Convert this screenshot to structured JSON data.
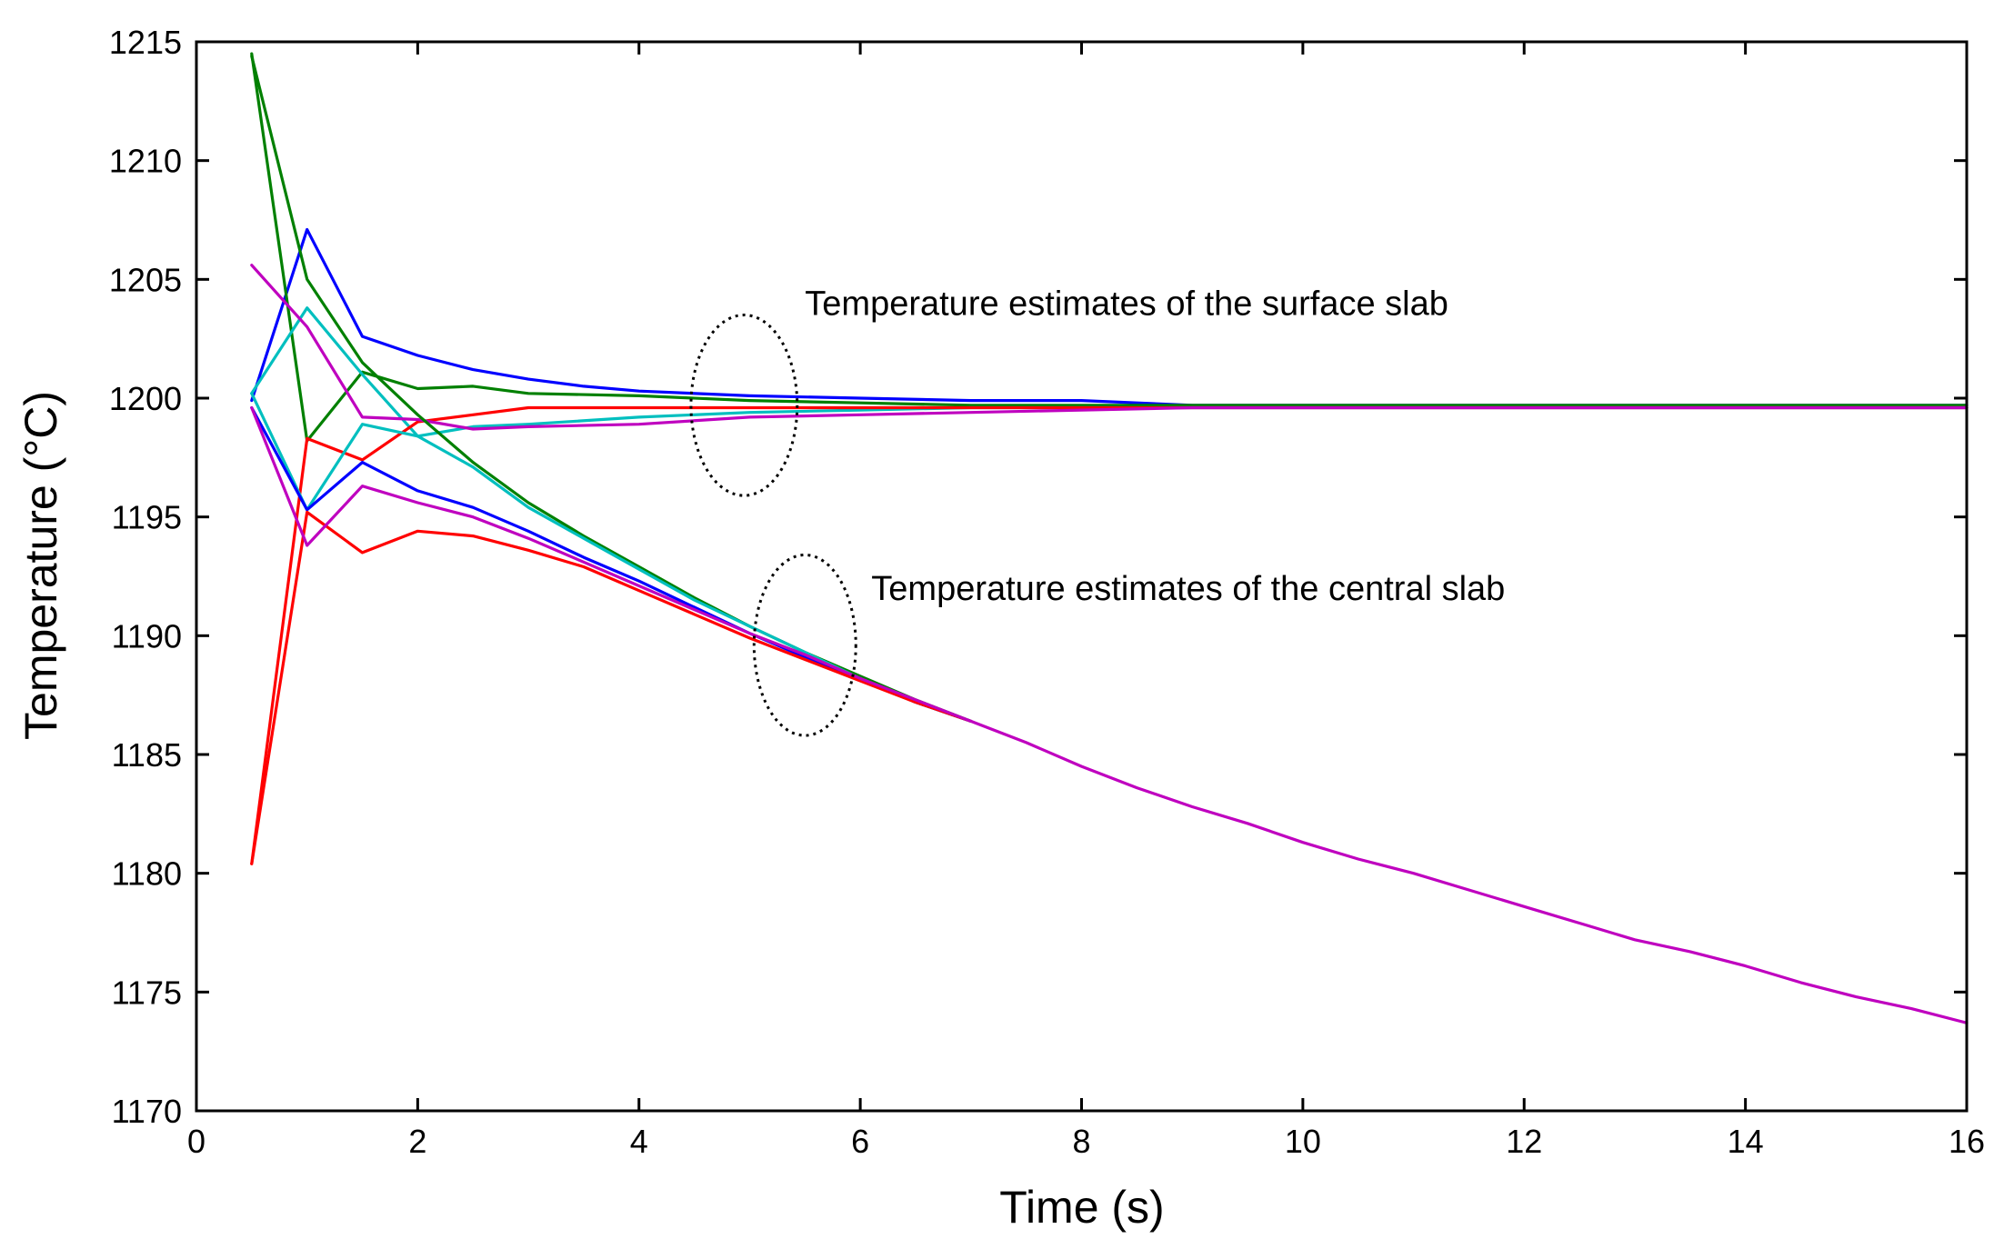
{
  "chart_data": {
    "type": "line",
    "title": "",
    "xlabel": "Time (s)",
    "ylabel": "Temperature (°C)",
    "xlim": [
      0,
      16
    ],
    "ylim": [
      1170,
      1215
    ],
    "xticks": [
      0,
      2,
      4,
      6,
      8,
      10,
      12,
      14,
      16
    ],
    "yticks": [
      1170,
      1175,
      1180,
      1185,
      1190,
      1195,
      1200,
      1205,
      1210,
      1215
    ],
    "grid": false,
    "legend": null,
    "annotations": [
      {
        "text": "Temperature estimates of the surface slab",
        "x": 5.5,
        "y": 1203.5,
        "ellipse": {
          "cx": 4.95,
          "cy": 1199.7,
          "rx": 0.48,
          "ry": 3.8
        }
      },
      {
        "text": "Temperature estimates of the central slab",
        "x": 6.1,
        "y": 1191.5,
        "ellipse": {
          "cx": 5.5,
          "cy": 1189.6,
          "rx": 0.46,
          "ry": 3.8
        }
      }
    ],
    "series": [
      {
        "name": "surface-blue",
        "color": "#0000ff",
        "x": [
          0.5,
          1,
          1.5,
          2,
          2.5,
          3,
          3.5,
          4,
          5,
          6,
          7,
          8,
          9,
          10,
          12,
          14,
          16
        ],
        "y": [
          1199.9,
          1207.1,
          1202.6,
          1201.8,
          1201.2,
          1200.8,
          1200.5,
          1200.3,
          1200.1,
          1200.0,
          1199.9,
          1199.9,
          1199.7,
          1199.7,
          1199.7,
          1199.7,
          1199.7
        ]
      },
      {
        "name": "surface-green",
        "color": "#008000",
        "x": [
          0.5,
          1,
          1.5,
          2,
          2.5,
          3,
          4,
          5,
          6,
          7,
          8,
          9,
          10,
          12,
          14,
          16
        ],
        "y": [
          1214.5,
          1198.2,
          1201.1,
          1200.4,
          1200.5,
          1200.2,
          1200.1,
          1199.9,
          1199.8,
          1199.7,
          1199.7,
          1199.7,
          1199.7,
          1199.7,
          1199.7,
          1199.7
        ]
      },
      {
        "name": "surface-cyan",
        "color": "#00bfbf",
        "x": [
          0.5,
          1,
          1.5,
          2,
          2.5,
          3,
          4,
          5,
          6,
          7,
          8,
          9,
          10,
          12,
          14,
          16
        ],
        "y": [
          1200.2,
          1203.8,
          1201.0,
          1198.4,
          1198.8,
          1198.9,
          1199.2,
          1199.4,
          1199.5,
          1199.6,
          1199.6,
          1199.6,
          1199.6,
          1199.6,
          1199.6,
          1199.6
        ]
      },
      {
        "name": "surface-red",
        "color": "#ff0000",
        "x": [
          0.5,
          1,
          1.5,
          2,
          2.5,
          3,
          4,
          5,
          6,
          7,
          8,
          9,
          10,
          12,
          14,
          16
        ],
        "y": [
          1180.4,
          1198.3,
          1197.4,
          1199.0,
          1199.3,
          1199.6,
          1199.6,
          1199.6,
          1199.6,
          1199.6,
          1199.6,
          1199.6,
          1199.6,
          1199.6,
          1199.6,
          1199.6
        ]
      },
      {
        "name": "surface-magenta",
        "color": "#bf00bf",
        "x": [
          0.5,
          1,
          1.5,
          2,
          2.5,
          3,
          4,
          5,
          6,
          7,
          8,
          9,
          10,
          12,
          14,
          16
        ],
        "y": [
          1205.6,
          1203.0,
          1199.2,
          1199.1,
          1198.7,
          1198.8,
          1198.9,
          1199.2,
          1199.3,
          1199.4,
          1199.5,
          1199.6,
          1199.6,
          1199.6,
          1199.6,
          1199.6
        ]
      },
      {
        "name": "central-green",
        "color": "#008000",
        "x": [
          0.5,
          1,
          1.5,
          2,
          2.5,
          3,
          3.5,
          4,
          4.5,
          5,
          5.5,
          6,
          6.5,
          7
        ],
        "y": [
          1214.4,
          1205.0,
          1201.5,
          1199.3,
          1197.3,
          1195.6,
          1194.2,
          1192.9,
          1191.6,
          1190.4,
          1189.3,
          1188.3,
          1187.3,
          1186.4
        ]
      },
      {
        "name": "central-cyan",
        "color": "#00bfbf",
        "x": [
          0.5,
          1,
          1.5,
          2,
          2.5,
          3,
          3.5,
          4,
          4.5,
          5,
          5.5,
          6,
          6.5,
          7
        ],
        "y": [
          1200.2,
          1195.3,
          1198.9,
          1198.4,
          1197.1,
          1195.4,
          1194.1,
          1192.8,
          1191.5,
          1190.4,
          1189.3,
          1188.2,
          1187.2,
          1186.4
        ]
      },
      {
        "name": "central-blue",
        "color": "#0000ff",
        "x": [
          0.5,
          1,
          1.5,
          2,
          2.5,
          3,
          3.5,
          4,
          4.5,
          5,
          5.5,
          6,
          6.5,
          7
        ],
        "y": [
          1199.6,
          1195.3,
          1197.3,
          1196.1,
          1195.4,
          1194.4,
          1193.3,
          1192.3,
          1191.2,
          1190.1,
          1189.1,
          1188.2,
          1187.2,
          1186.4
        ]
      },
      {
        "name": "central-red",
        "color": "#ff0000",
        "x": [
          0.5,
          1,
          1.5,
          2,
          2.5,
          3,
          3.5,
          4,
          4.5,
          5,
          5.5,
          6,
          6.5,
          7
        ],
        "y": [
          1180.4,
          1195.2,
          1193.5,
          1194.4,
          1194.2,
          1193.6,
          1192.9,
          1191.9,
          1190.9,
          1189.9,
          1189.0,
          1188.1,
          1187.2,
          1186.4
        ]
      },
      {
        "name": "central-magenta",
        "color": "#bf00bf",
        "x": [
          0.5,
          1,
          1.5,
          2,
          2.5,
          3,
          3.5,
          4,
          4.5,
          5,
          5.5,
          6,
          6.5,
          7,
          7.5,
          8,
          8.5,
          9,
          9.5,
          10,
          10.5,
          11,
          11.5,
          12,
          12.5,
          13,
          13.5,
          14,
          14.5,
          15,
          15.5,
          16
        ],
        "y": [
          1199.6,
          1193.8,
          1196.3,
          1195.6,
          1195.0,
          1194.1,
          1193.1,
          1192.1,
          1191.1,
          1190.1,
          1189.2,
          1188.2,
          1187.3,
          1186.4,
          1185.5,
          1184.5,
          1183.6,
          1182.8,
          1182.1,
          1181.3,
          1180.6,
          1180.0,
          1179.3,
          1178.6,
          1177.9,
          1177.2,
          1176.7,
          1176.1,
          1175.4,
          1174.8,
          1174.3,
          1173.7
        ]
      }
    ]
  }
}
